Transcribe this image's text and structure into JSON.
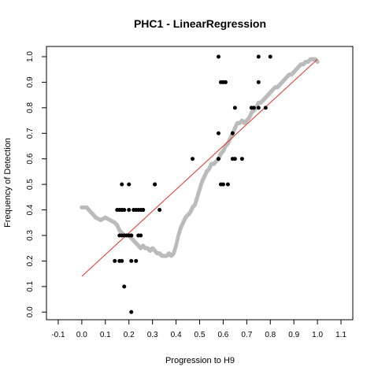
{
  "chart_data": {
    "type": "scatter",
    "title": "PHC1 - LinearRegression",
    "xlabel": "Progression to H9",
    "ylabel": "Frequency of Detection",
    "xlim": [
      -0.15,
      1.15
    ],
    "ylim": [
      -0.03,
      1.04
    ],
    "xticks": [
      "-0.1",
      "0.0",
      "0.1",
      "0.2",
      "0.3",
      "0.4",
      "0.5",
      "0.6",
      "0.7",
      "0.8",
      "0.9",
      "1.0",
      "1.1"
    ],
    "yticks": [
      "0.0",
      "0.1",
      "0.2",
      "0.3",
      "0.4",
      "0.5",
      "0.6",
      "0.7",
      "0.8",
      "0.9",
      "1.0"
    ],
    "grid": false,
    "colors": {
      "points": "#000000",
      "smooth": "#bbbbbb",
      "regression": "#e8302a",
      "frame": "#000000"
    },
    "series": [
      {
        "kind": "points",
        "x": [
          0.15,
          0.16,
          0.17,
          0.17,
          0.18,
          0.2,
          0.2,
          0.21,
          0.22,
          0.24,
          0.25,
          0.26,
          0.16,
          0.17,
          0.18,
          0.19,
          0.21,
          0.23,
          0.25,
          0.26,
          0.31,
          0.33,
          0.17,
          0.2,
          0.31,
          0.14,
          0.16,
          0.17,
          0.21,
          0.23,
          0.24,
          0.18,
          0.21,
          0.47,
          0.58,
          0.59,
          0.6,
          0.58,
          0.62,
          0.64,
          0.64,
          0.65,
          0.65,
          0.68,
          0.58,
          0.6,
          0.61,
          0.75,
          0.8,
          0.72,
          0.73,
          0.75,
          0.78,
          0.59,
          0.6,
          0.75
        ],
        "y": [
          0.4,
          0.4,
          0.4,
          0.4,
          0.4,
          0.4,
          0.3,
          0.3,
          0.4,
          0.4,
          0.4,
          0.4,
          0.3,
          0.3,
          0.3,
          0.3,
          0.3,
          0.4,
          0.3,
          0.4,
          0.5,
          0.4,
          0.5,
          0.5,
          0.5,
          0.2,
          0.2,
          0.2,
          0.2,
          0.2,
          0.3,
          0.1,
          0.0,
          0.6,
          0.6,
          0.5,
          0.5,
          0.7,
          0.5,
          0.7,
          0.6,
          0.6,
          0.8,
          0.6,
          1.0,
          0.9,
          0.9,
          1.0,
          1.0,
          0.8,
          0.8,
          0.8,
          0.8,
          0.9,
          0.9,
          0.9
        ]
      },
      {
        "kind": "smooth",
        "x": [
          0.0,
          0.02,
          0.03,
          0.04,
          0.05,
          0.06,
          0.08,
          0.1,
          0.12,
          0.14,
          0.15,
          0.16,
          0.17,
          0.18,
          0.19,
          0.2,
          0.21,
          0.22,
          0.23,
          0.24,
          0.25,
          0.26,
          0.27,
          0.28,
          0.29,
          0.3,
          0.31,
          0.32,
          0.33,
          0.34,
          0.35,
          0.36,
          0.37,
          0.38,
          0.39,
          0.4,
          0.41,
          0.42,
          0.43,
          0.44,
          0.45,
          0.46,
          0.47,
          0.48,
          0.49,
          0.5,
          0.51,
          0.52,
          0.53,
          0.54,
          0.55,
          0.56,
          0.57,
          0.58,
          0.59,
          0.6,
          0.61,
          0.62,
          0.63,
          0.64,
          0.65,
          0.66,
          0.67,
          0.68,
          0.69,
          0.7,
          0.71,
          0.72,
          0.73,
          0.74,
          0.75,
          0.76,
          0.77,
          0.78,
          0.79,
          0.8,
          0.81,
          0.82,
          0.83,
          0.84,
          0.85,
          0.86,
          0.87,
          0.88,
          0.89,
          0.9,
          0.91,
          0.92,
          0.93,
          0.94,
          0.95,
          0.96,
          0.97,
          0.98,
          0.99,
          1.0
        ],
        "y": [
          0.41,
          0.41,
          0.4,
          0.39,
          0.38,
          0.37,
          0.36,
          0.37,
          0.36,
          0.35,
          0.34,
          0.32,
          0.31,
          0.3,
          0.3,
          0.3,
          0.29,
          0.28,
          0.27,
          0.26,
          0.25,
          0.26,
          0.25,
          0.25,
          0.24,
          0.25,
          0.24,
          0.23,
          0.23,
          0.22,
          0.22,
          0.22,
          0.23,
          0.22,
          0.23,
          0.26,
          0.3,
          0.33,
          0.35,
          0.37,
          0.38,
          0.39,
          0.41,
          0.42,
          0.45,
          0.48,
          0.51,
          0.53,
          0.55,
          0.56,
          0.58,
          0.58,
          0.59,
          0.6,
          0.62,
          0.63,
          0.65,
          0.66,
          0.68,
          0.7,
          0.72,
          0.74,
          0.74,
          0.75,
          0.74,
          0.75,
          0.76,
          0.78,
          0.79,
          0.8,
          0.82,
          0.82,
          0.83,
          0.84,
          0.85,
          0.86,
          0.87,
          0.88,
          0.88,
          0.89,
          0.9,
          0.91,
          0.92,
          0.93,
          0.93,
          0.94,
          0.95,
          0.96,
          0.97,
          0.97,
          0.98,
          0.98,
          0.99,
          0.99,
          0.99,
          0.98
        ]
      },
      {
        "kind": "regression-line",
        "x": [
          0.0,
          1.0
        ],
        "y": [
          0.14,
          0.99
        ]
      }
    ]
  }
}
